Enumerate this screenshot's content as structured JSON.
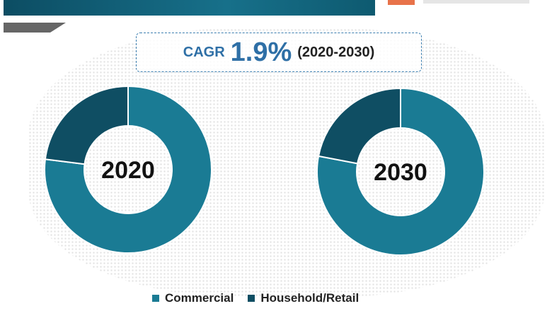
{
  "cagr": {
    "label": "CAGR",
    "value": "1.9%",
    "period": "(2020-2030)"
  },
  "chart_data": [
    {
      "type": "pie",
      "donut": true,
      "title": "2020",
      "categories": [
        "Commercial",
        "Household/Retail"
      ],
      "values": [
        77,
        23
      ],
      "colors": [
        "#1a7b94",
        "#0f4e63"
      ]
    },
    {
      "type": "pie",
      "donut": true,
      "title": "2030",
      "categories": [
        "Commercial",
        "Household/Retail"
      ],
      "values": [
        78,
        22
      ],
      "colors": [
        "#1a7b94",
        "#0f4e63"
      ]
    }
  ],
  "legend": [
    {
      "label": "Commercial",
      "color": "#1a7b94"
    },
    {
      "label": "Household/Retail",
      "color": "#0f4e63"
    }
  ]
}
